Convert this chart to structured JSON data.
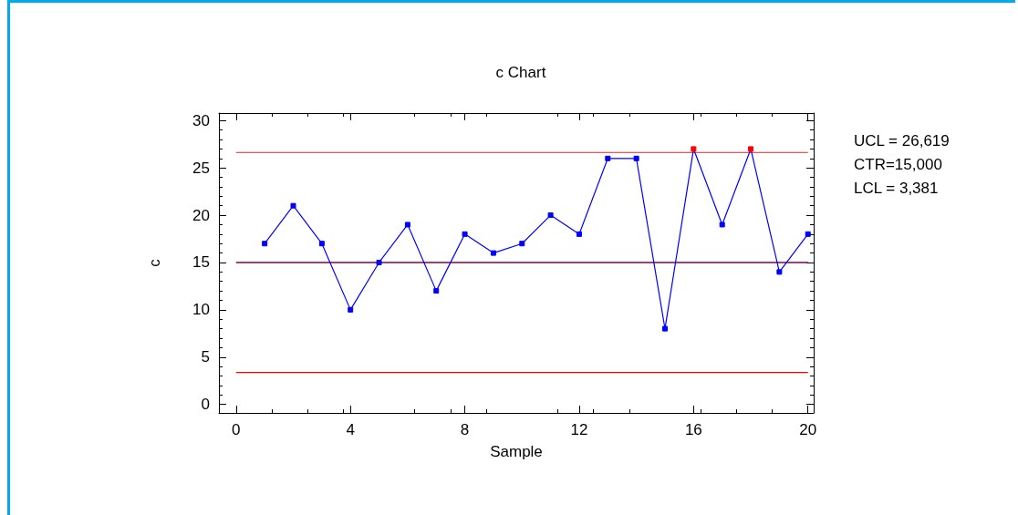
{
  "chart_data": {
    "type": "line",
    "title": "c Chart",
    "xlabel": "Sample",
    "ylabel": "c",
    "x": [
      1,
      2,
      3,
      4,
      5,
      6,
      7,
      8,
      9,
      10,
      11,
      12,
      13,
      14,
      15,
      16,
      17,
      18,
      19,
      20
    ],
    "series": [
      {
        "color": "#0000ff",
        "values": [
          17,
          21,
          17,
          10,
          15,
          19,
          12,
          18,
          16,
          17,
          20,
          18,
          26,
          26,
          8,
          27,
          19,
          27,
          14,
          18
        ],
        "colors": [
          "#0000ff",
          "#0000ff",
          "#0000ff",
          "#0000ff",
          "#0000ff",
          "#0000ff",
          "#0000ff",
          "#0000ff",
          "#0000ff",
          "#0000ff",
          "#0000ff",
          "#0000ff",
          "#0000ff",
          "#0000ff",
          "#0000ff",
          "#ff0000",
          "#0000ff",
          "#ff0000",
          "#0000ff",
          "#0000ff"
        ]
      }
    ],
    "xlim": [
      -0.6,
      20.2
    ],
    "xticks": [
      0,
      4,
      8,
      12,
      16,
      20
    ],
    "ylim": [
      -0.9,
      30.8
    ],
    "yticks": [
      0,
      5,
      10,
      15,
      20,
      25,
      30
    ],
    "ref_lines": [
      {
        "axis": "y",
        "value": 26.619,
        "color": "#ff5050"
      },
      {
        "axis": "y",
        "value": 15,
        "color": "#800050"
      },
      {
        "axis": "y",
        "value": 3.381,
        "color": "#ff0000"
      }
    ],
    "annotations": [
      "UCL = 26,619",
      "CTR=15,000",
      "LCL = 3,381"
    ],
    "marker": "square",
    "line_style": "solid",
    "grid": false
  }
}
